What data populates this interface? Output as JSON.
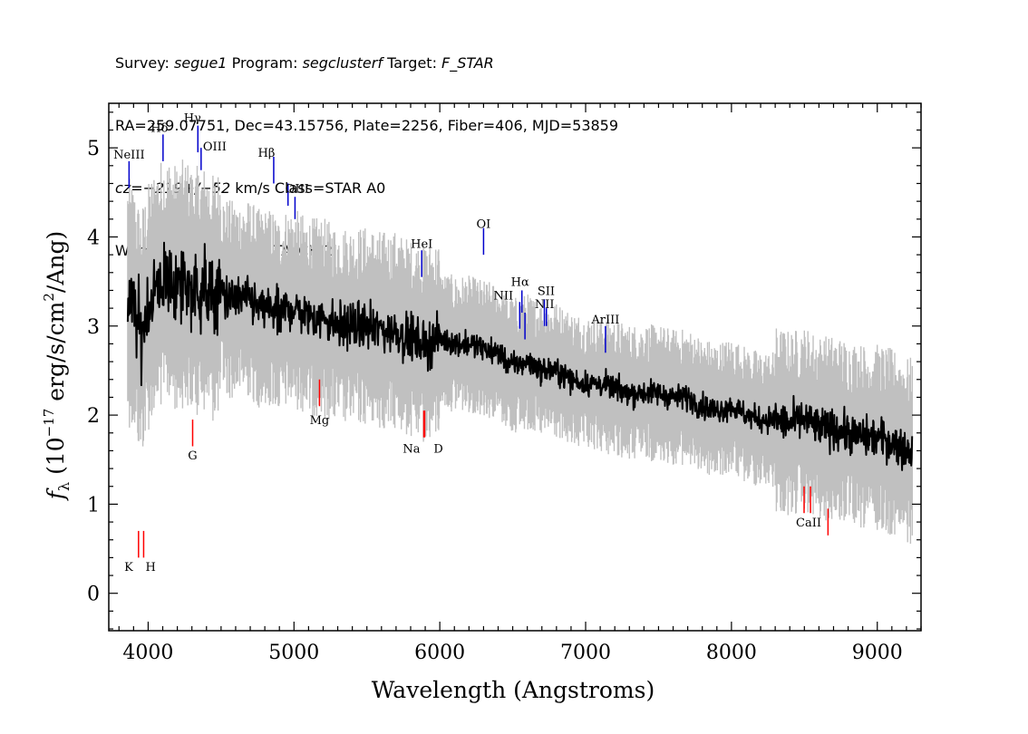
{
  "header": {
    "survey_label": "Survey:",
    "survey": "segue1",
    "program_label": "Program:",
    "program": "segclusterf",
    "target_label": "Target:",
    "target": "F_STAR",
    "line2": "RA=259.07751, Dec=43.15756, Plate=2256, Fiber=406, MJD=53859",
    "cz_label": "cz=",
    "cz": "−219+/−52",
    "cz_rest": " km/s Class=STAR A0",
    "warnings": "Warnings: SMALL_DELTA_CHI2"
  },
  "chart_data": {
    "type": "line",
    "xlabel": "Wavelength (Angstroms)",
    "ylabel_parts": {
      "f": "f",
      "sub": "λ",
      "pre": " (10",
      "exp": "−17",
      "mid": " erg/s/cm",
      "exp2": "2",
      "post": "/Ang)"
    },
    "xlim": [
      3730,
      9300
    ],
    "ylim": [
      -0.42,
      5.5
    ],
    "xticks": [
      4000,
      5000,
      6000,
      7000,
      8000,
      9000
    ],
    "yticks": [
      0,
      1,
      2,
      3,
      4,
      5
    ],
    "colors": {
      "flux": "#000000",
      "noise_band": "#c0c0c0",
      "emission_marker": "#0000cc",
      "absorption_marker": "#ff0000"
    },
    "series": [
      {
        "name": "flux",
        "x": [
          3850,
          3900,
          3950,
          4000,
          4050,
          4100,
          4150,
          4200,
          4250,
          4300,
          4350,
          4400,
          4450,
          4500,
          4550,
          4600,
          4650,
          4700,
          4750,
          4800,
          4850,
          4900,
          4950,
          5000,
          5100,
          5200,
          5300,
          5400,
          5500,
          5600,
          5700,
          5800,
          5900,
          6000,
          6100,
          6200,
          6300,
          6400,
          6500,
          6600,
          6700,
          6800,
          6900,
          7000,
          7100,
          7200,
          7300,
          7400,
          7500,
          7600,
          7700,
          7800,
          7900,
          8000,
          8100,
          8200,
          8300,
          8400,
          8500,
          8600,
          8700,
          8800,
          8900,
          9000,
          9100,
          9200
        ],
        "y": [
          3.3,
          3.2,
          2.9,
          3.2,
          3.4,
          3.5,
          3.5,
          3.4,
          3.5,
          3.4,
          3.4,
          3.4,
          3.3,
          3.4,
          3.3,
          3.3,
          3.3,
          3.3,
          3.2,
          3.2,
          3.2,
          3.1,
          3.2,
          3.2,
          3.1,
          3.1,
          3.0,
          3.0,
          3.0,
          2.95,
          2.95,
          2.85,
          2.8,
          2.85,
          2.8,
          2.8,
          2.75,
          2.7,
          2.55,
          2.6,
          2.5,
          2.5,
          2.4,
          2.35,
          2.35,
          2.3,
          2.25,
          2.25,
          2.25,
          2.2,
          2.2,
          2.1,
          2.05,
          2.1,
          2.0,
          1.95,
          1.95,
          1.9,
          1.95,
          1.85,
          1.85,
          1.8,
          1.75,
          1.75,
          1.7,
          1.6
        ]
      }
    ],
    "lines": [
      {
        "label": "NeIII",
        "x": 3869,
        "color": "blue",
        "y0": 4.55,
        "y1": 4.85,
        "ly": 4.88
      },
      {
        "label": "Hδ",
        "x": 4102,
        "color": "blue",
        "y0": 4.85,
        "y1": 5.15,
        "ly": 5.18
      },
      {
        "label": "Hγ",
        "x": 4341,
        "color": "blue",
        "y0": 4.95,
        "y1": 5.25,
        "ly": 5.29
      },
      {
        "label": "OIII",
        "x": 4363,
        "color": "blue",
        "y0": 4.75,
        "y1": 5.0,
        "ly": 4.97
      },
      {
        "label": "Hβ",
        "x": 4861,
        "color": "blue",
        "y0": 4.6,
        "y1": 4.9,
        "ly": 4.9
      },
      {
        "label": "OIII",
        "x": 4959,
        "color": "blue",
        "y0": 4.35,
        "y1": 4.6,
        "ly": 4.5
      },
      {
        "label": "",
        "x": 5007,
        "color": "blue",
        "y0": 4.2,
        "y1": 4.45,
        "ly": 0
      },
      {
        "label": "OI",
        "x": 6300,
        "color": "blue",
        "y0": 3.8,
        "y1": 4.1,
        "ly": 4.1
      },
      {
        "label": "HeI",
        "x": 5876,
        "color": "blue",
        "y0": 3.55,
        "y1": 3.85,
        "ly": 3.88
      },
      {
        "label": "NII",
        "x": 6548,
        "color": "blue",
        "y0": 2.97,
        "y1": 3.27,
        "ly": 3.3
      },
      {
        "label": "Hα",
        "x": 6563,
        "color": "blue",
        "y0": 3.15,
        "y1": 3.4,
        "ly": 3.45
      },
      {
        "label": "",
        "x": 6584,
        "color": "blue",
        "y0": 2.85,
        "y1": 3.15,
        "ly": 0
      },
      {
        "label": "SII",
        "x": 6717,
        "color": "blue",
        "y0": 3.0,
        "y1": 3.3,
        "ly": 3.35
      },
      {
        "label": "NII",
        "x": 6731,
        "color": "blue",
        "y0": 3.0,
        "y1": 3.2,
        "ly": 3.2
      },
      {
        "label": "ArIII",
        "x": 7136,
        "color": "blue",
        "y0": 2.7,
        "y1": 3.0,
        "ly": 3.03
      },
      {
        "label": "K",
        "x": 3934,
        "color": "red",
        "y0": 0.4,
        "y1": 0.7,
        "ly": 0.25
      },
      {
        "label": "H",
        "x": 3969,
        "color": "red",
        "y0": 0.4,
        "y1": 0.7,
        "ly": 0.25
      },
      {
        "label": "G",
        "x": 4305,
        "color": "red",
        "y0": 1.65,
        "y1": 1.95,
        "ly": 1.5
      },
      {
        "label": "Mg",
        "x": 5175,
        "color": "red",
        "y0": 2.1,
        "y1": 2.4,
        "ly": 1.9
      },
      {
        "label": "Na",
        "x": 5890,
        "color": "red",
        "y0": 1.75,
        "y1": 2.05,
        "ly": 1.58
      },
      {
        "label": "D",
        "x": 5896,
        "color": "red",
        "y0": 1.75,
        "y1": 2.05,
        "ly": 1.58
      },
      {
        "label": "CaII",
        "x": 8498,
        "color": "red",
        "y0": 0.9,
        "y1": 1.2,
        "ly": 0.75
      },
      {
        "label": "",
        "x": 8542,
        "color": "red",
        "y0": 0.9,
        "y1": 1.2,
        "ly": 0
      },
      {
        "label": "",
        "x": 8662,
        "color": "red",
        "y0": 0.65,
        "y1": 0.95,
        "ly": 0
      }
    ]
  }
}
